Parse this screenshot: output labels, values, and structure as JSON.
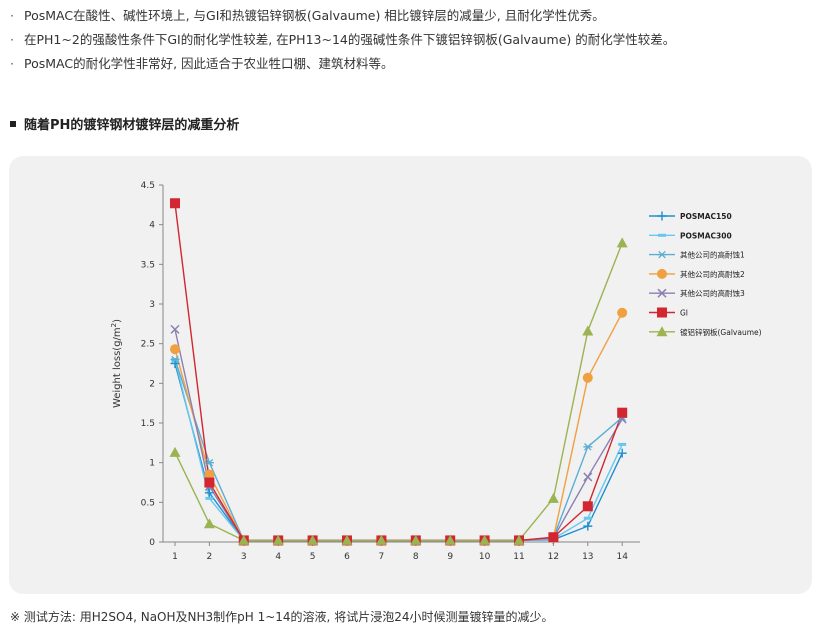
{
  "bullets": [
    {
      "marker": "·",
      "text": "PosMAC在酸性、碱性环境上, 与GI和热镀铝锌钢板(Galvaume) 相比镀锌层的减量少, 且耐化学性优秀。"
    },
    {
      "marker": "·",
      "text": "在PH1~2的强酸性条件下GI的耐化学性较差, 在PH13~14的强碱性条件下镀铝锌钢板(Galvaume) 的耐化学性较差。"
    },
    {
      "marker": "·",
      "text": "PosMAC的耐化学性非常好, 因此适合于农业牲口棚、建筑材料等。"
    }
  ],
  "section_title": "随着PH的镀锌钢材镀锌层的减重分析",
  "footnote": "※ 测试方法: 用H2SO4, NaOH及NH3制作pH 1~14的溶液, 将试片浸泡24小时候测量镀锌量的减少。",
  "chart_data": {
    "type": "line",
    "title": "",
    "xlabel": "",
    "ylabel": "Weight loss(g/m²)",
    "ylabel_main": "Weight loss(g/m",
    "ylabel_sup": "2",
    "ylabel_close": ")",
    "ylim": [
      0,
      4.5
    ],
    "y_ticks": [
      0,
      0.5,
      1,
      1.5,
      2,
      2.5,
      3,
      3.5,
      4,
      4.5
    ],
    "y_tick_labels": [
      "0",
      "0.5",
      "1",
      "1.5",
      "2",
      "2.5",
      "3",
      "3.5",
      "4",
      "4.5"
    ],
    "x": [
      1,
      2,
      3,
      4,
      5,
      6,
      7,
      8,
      9,
      10,
      11,
      12,
      13,
      14
    ],
    "x_tick_labels": [
      "1",
      "2",
      "3",
      "4",
      "5",
      "6",
      "7",
      "8",
      "9",
      "10",
      "11",
      "12",
      "13",
      "14"
    ],
    "grid": false,
    "legend_position": "right",
    "series": [
      {
        "name": "POSMAC150",
        "color": "#1f8fd0",
        "marker": "plus",
        "values": [
          2.25,
          0.62,
          0.02,
          0.02,
          0.02,
          0.02,
          0.02,
          0.02,
          0.02,
          0.02,
          0.02,
          0.03,
          0.2,
          1.12
        ]
      },
      {
        "name": "POSMAC300",
        "color": "#67c7ee",
        "marker": "dash",
        "values": [
          2.3,
          0.55,
          0.02,
          0.02,
          0.02,
          0.02,
          0.02,
          0.02,
          0.02,
          0.02,
          0.02,
          0.04,
          0.3,
          1.23
        ]
      },
      {
        "name": "其他公司的高耐蚀1",
        "color": "#5aaed2",
        "marker": "asterisk",
        "values": [
          2.3,
          1.0,
          0.02,
          0.02,
          0.02,
          0.02,
          0.02,
          0.02,
          0.02,
          0.02,
          0.02,
          0.05,
          1.2,
          1.57
        ]
      },
      {
        "name": "其他公司的高耐蚀2",
        "color": "#f0a040",
        "marker": "circle",
        "values": [
          2.43,
          0.85,
          0.02,
          0.02,
          0.02,
          0.02,
          0.02,
          0.02,
          0.02,
          0.02,
          0.02,
          0.05,
          2.07,
          2.89
        ]
      },
      {
        "name": "其他公司的高耐蚀3",
        "color": "#8c7fb3",
        "marker": "x",
        "values": [
          2.68,
          0.7,
          0.02,
          0.02,
          0.02,
          0.02,
          0.02,
          0.02,
          0.02,
          0.02,
          0.02,
          0.05,
          0.82,
          1.55
        ]
      },
      {
        "name": "GI",
        "color": "#d22630",
        "marker": "square",
        "values": [
          4.27,
          0.75,
          0.02,
          0.02,
          0.02,
          0.02,
          0.02,
          0.02,
          0.02,
          0.02,
          0.02,
          0.06,
          0.45,
          1.63
        ]
      },
      {
        "name": "镀铝锌钢板(Galvaume)",
        "color": "#9bb350",
        "marker": "triangle",
        "values": [
          1.13,
          0.23,
          0.02,
          0.02,
          0.02,
          0.02,
          0.02,
          0.02,
          0.02,
          0.02,
          0.02,
          0.55,
          2.66,
          3.77
        ]
      }
    ]
  }
}
